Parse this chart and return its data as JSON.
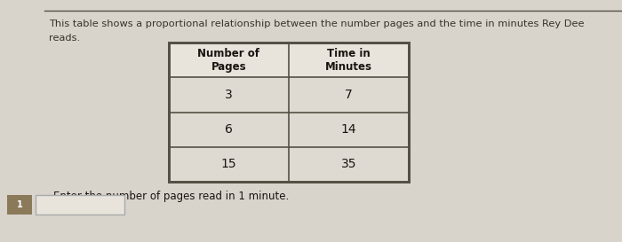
{
  "title_line1": "This table shows a proportional relationship between the number pages and the time in minutes Rey Dee",
  "title_line2": "reads.",
  "col_headers": [
    "Number of\nPages",
    "Time in\nMinutes"
  ],
  "rows": [
    [
      "3",
      "7"
    ],
    [
      "6",
      "14"
    ],
    [
      "15",
      "35"
    ]
  ],
  "question": "Enter the number of pages read in 1 minute.",
  "bg_color": "#d8d4cc",
  "header_bg_color": "#e8e4dc",
  "data_cell_bg": "#dedad2",
  "border_color": "#555044",
  "number_box_color": "#8a7a5a",
  "number_box_label": "1",
  "input_box_color": "#e8e4dc",
  "title_color": "#3a3228",
  "text_color": "#1a1410"
}
